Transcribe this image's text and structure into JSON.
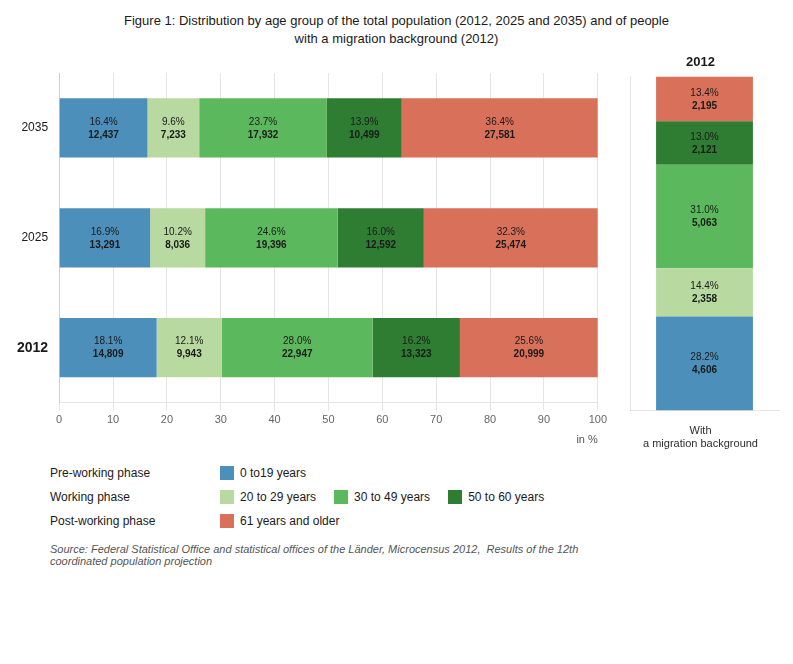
{
  "chart_data": [
    {
      "type": "bar",
      "title": "Figure 1: Distribution by age group of the total population (2012, 2025 and 2035) and of people\nwith a migration background (2012)",
      "orientation": "horizontal",
      "stacked": true,
      "data_labels": true,
      "grid": true,
      "legend": "bottom",
      "xlabel": "in %",
      "xlim": [
        0,
        100
      ],
      "xticks": [
        0,
        10,
        20,
        30,
        40,
        50,
        60,
        70,
        80,
        90,
        100
      ],
      "categories": [
        "2035",
        "2025",
        "2012"
      ],
      "series": [
        {
          "name": "0 to19 years",
          "group": "Pre-working phase",
          "color": "#4b8fba",
          "values": [
            16.4,
            16.9,
            18.1
          ],
          "value_labels": [
            "16.4%",
            "16.9%",
            "18.1%"
          ],
          "count_labels": [
            "12,437",
            "13,291",
            "14,809"
          ]
        },
        {
          "name": "20 to 29 years",
          "group": "Working phase",
          "color": "#b8d9a0",
          "values": [
            9.6,
            10.2,
            12.1
          ],
          "value_labels": [
            "9.6%",
            "10.2%",
            "12.1%"
          ],
          "count_labels": [
            "7,233",
            "8,036",
            "9,943"
          ]
        },
        {
          "name": "30 to 49 years",
          "group": "Working phase",
          "color": "#5cb85c",
          "values": [
            23.7,
            24.6,
            28.0
          ],
          "value_labels": [
            "23.7%",
            "24.6%",
            "28.0%"
          ],
          "count_labels": [
            "17,932",
            "19,396",
            "22,947"
          ]
        },
        {
          "name": "50 to 60 years",
          "group": "Working phase",
          "color": "#2e7d32",
          "values": [
            13.9,
            16.0,
            16.2
          ],
          "value_labels": [
            "13.9%",
            "16.0%",
            "16.2%"
          ],
          "count_labels": [
            "10,499",
            "12,592",
            "13,323"
          ]
        },
        {
          "name": "61 years and older",
          "group": "Post-working phase",
          "color": "#d9705a",
          "values": [
            36.4,
            32.3,
            25.6
          ],
          "value_labels": [
            "36.4%",
            "32.3%",
            "25.6%"
          ],
          "count_labels": [
            "27,581",
            "25,474",
            "20,999"
          ]
        }
      ],
      "source": "Source: Federal Statistical Office and statistical offices of the Länder, Microcensus 2012,  Results of the 12th\ncoordinated population projection"
    },
    {
      "type": "bar",
      "title": "2012",
      "subtitle": "With\na migration background",
      "stacked": true,
      "data_labels": true,
      "tick_labels": false,
      "ylim": [
        0,
        100
      ],
      "categories": [
        null
      ],
      "series": [
        {
          "name": "0 to19 years",
          "color": "#4b8fba",
          "values": [
            28.2
          ],
          "value_labels": [
            "28.2%"
          ],
          "count_labels": [
            "4,606"
          ]
        },
        {
          "name": "20 to 29 years",
          "color": "#b8d9a0",
          "values": [
            14.4
          ],
          "value_labels": [
            "14.4%"
          ],
          "count_labels": [
            "2,358"
          ]
        },
        {
          "name": "30 to 49 years",
          "color": "#5cb85c",
          "values": [
            31.0
          ],
          "value_labels": [
            "31.0%"
          ],
          "count_labels": [
            "5,063"
          ]
        },
        {
          "name": "50 to 60 years",
          "color": "#2e7d32",
          "values": [
            13.0
          ],
          "value_labels": [
            "13.0%"
          ],
          "count_labels": [
            "2,121"
          ]
        },
        {
          "name": "61 years and older",
          "color": "#d9705a",
          "values": [
            13.4
          ],
          "value_labels": [
            "13.4%"
          ],
          "count_labels": [
            "2,195"
          ]
        }
      ]
    }
  ]
}
